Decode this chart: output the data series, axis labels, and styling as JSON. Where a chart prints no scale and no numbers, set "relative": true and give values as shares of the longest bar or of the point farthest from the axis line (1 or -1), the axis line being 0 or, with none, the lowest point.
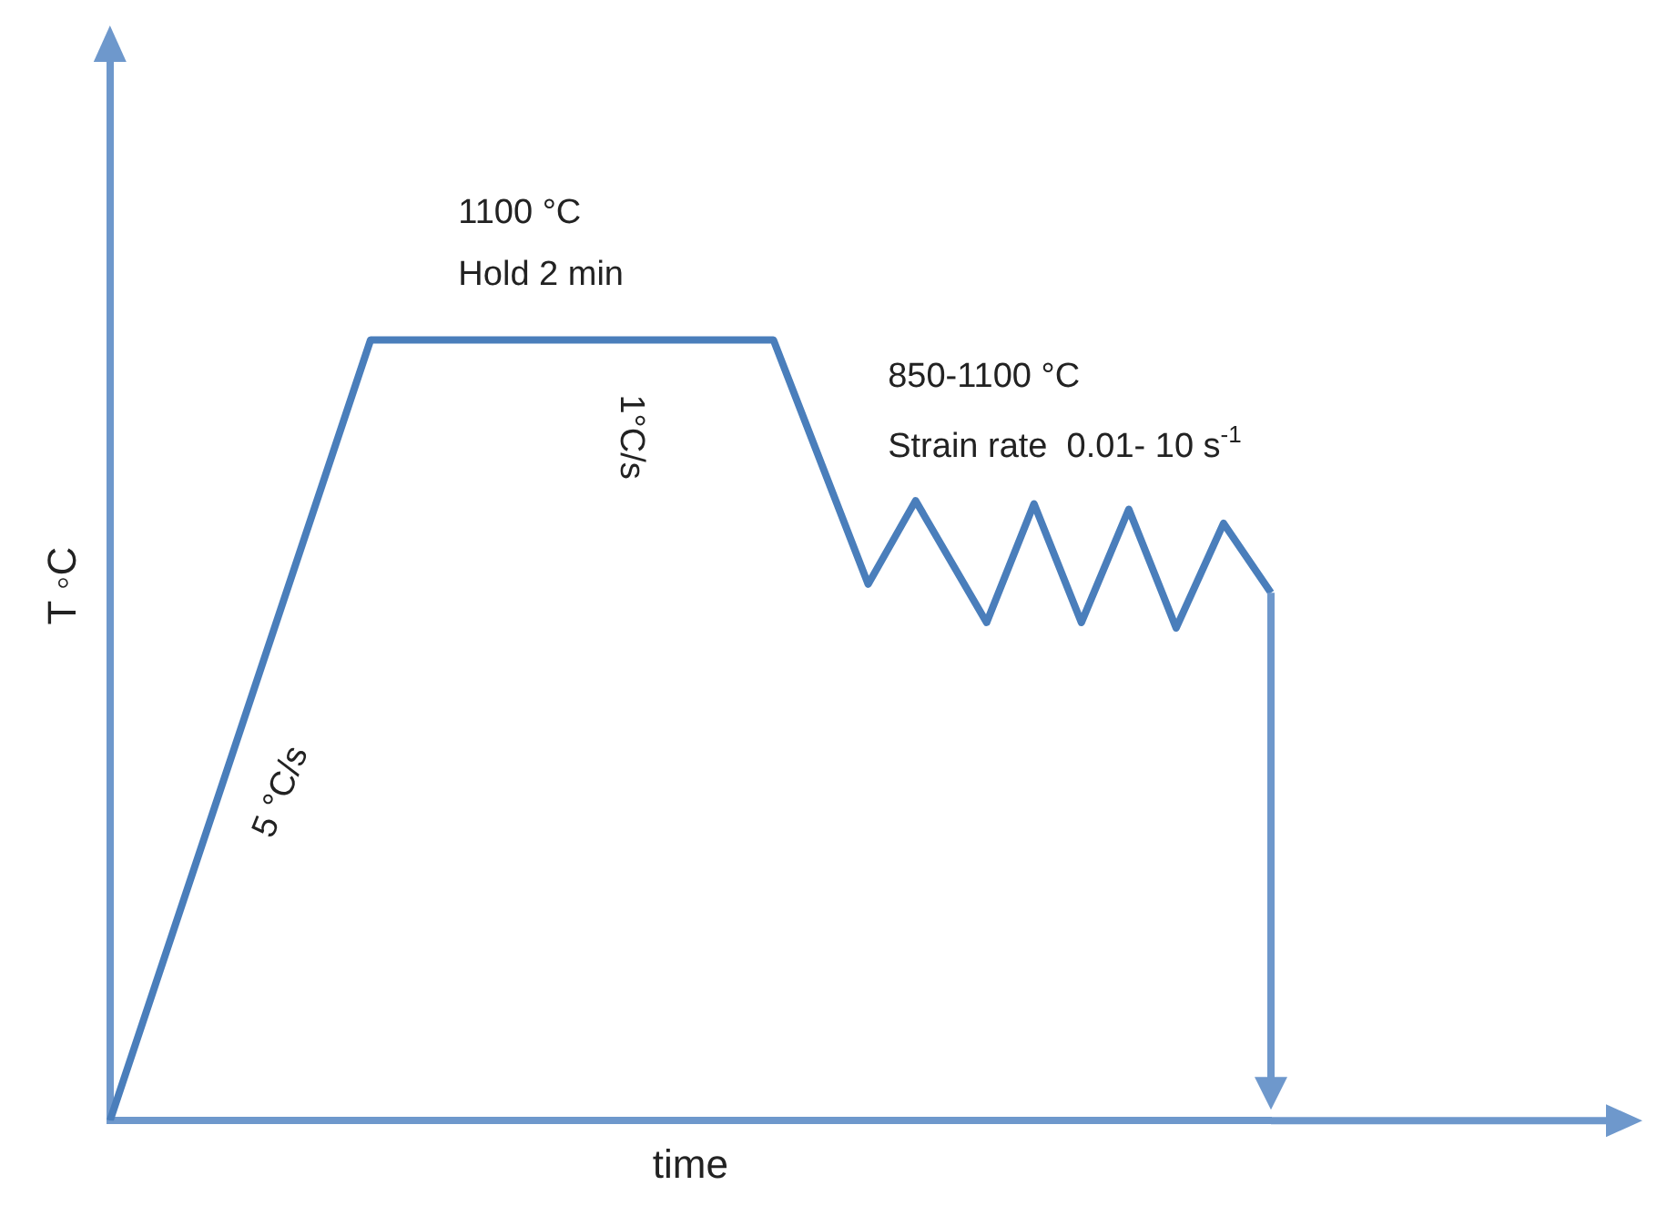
{
  "chart_data": {
    "type": "line",
    "relative": true,
    "xlabel": "time",
    "ylabel": "T ◦C",
    "categories": [
      null,
      null,
      null,
      null,
      null,
      null,
      null,
      null,
      null,
      null,
      null,
      null,
      null,
      null,
      null,
      null,
      null,
      null,
      null,
      null,
      null,
      null,
      null,
      null,
      null,
      null,
      null,
      null,
      null,
      null,
      null,
      null,
      null,
      null,
      null,
      null,
      null,
      null,
      null,
      null,
      null,
      null,
      null,
      null,
      null,
      null,
      null,
      null,
      null,
      null
    ],
    "series": [
      {
        "color": "#4a7ebb",
        "values": [
          0,
          null,
          null,
          null,
          null,
          null,
          null,
          null,
          null,
          null,
          null,
          1,
          null,
          null,
          null,
          null,
          null,
          null,
          null,
          null,
          null,
          null,
          null,
          null,
          null,
          null,
          null,
          null,
          1,
          null,
          null,
          null,
          0.687,
          null,
          0.794,
          null,
          null,
          0.638,
          null,
          0.79,
          null,
          0.638,
          null,
          0.783,
          null,
          0.631,
          null,
          0.765,
          null,
          0.676
        ]
      }
    ],
    "annotations": [
      "1100 °C",
      "Hold 2 min",
      "1°C/s",
      "850-1100 °C",
      "Strain rate  0.01- 10 s$^{-1}$",
      "5 °C/s"
    ],
    "tick_labels": false,
    "grid": false,
    "legend": false,
    "marker": "none"
  }
}
